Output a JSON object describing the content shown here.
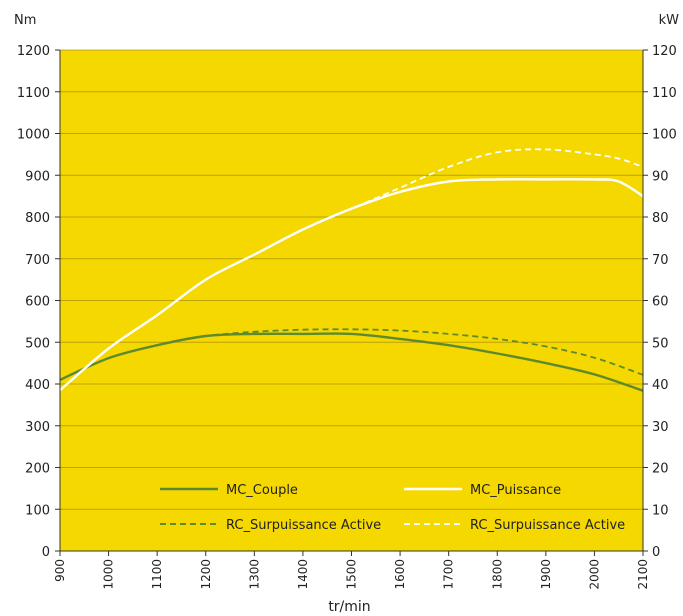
{
  "chart_data": {
    "type": "line",
    "title": "",
    "xlabel": "tr/min",
    "ylabel_left": "Nm",
    "ylabel_right": "kW",
    "x_ticks": [
      900,
      1000,
      1100,
      1200,
      1300,
      1400,
      1500,
      1600,
      1700,
      1800,
      1900,
      2000,
      2100
    ],
    "y_left_ticks": [
      0,
      100,
      200,
      300,
      400,
      500,
      600,
      700,
      800,
      900,
      1000,
      1100,
      1200
    ],
    "y_right_ticks": [
      0,
      10,
      20,
      30,
      40,
      50,
      60,
      70,
      80,
      90,
      100,
      110,
      120
    ],
    "xlim": [
      900,
      2100
    ],
    "ylim_left": [
      0,
      1200
    ],
    "ylim_right": [
      0,
      120
    ],
    "grid": "horizontal",
    "background_color": "#F5D800",
    "legend_position": "bottom-inside",
    "series": [
      {
        "name": "MC_Couple",
        "axis": "left",
        "style": "solid",
        "color": "#5E8A2E",
        "x": [
          900,
          1000,
          1100,
          1200,
          1300,
          1400,
          1500,
          1600,
          1700,
          1800,
          1900,
          2000,
          2100
        ],
        "y": [
          410,
          462,
          493,
          515,
          520,
          520,
          520,
          508,
          493,
          473,
          450,
          423,
          384
        ]
      },
      {
        "name": "MC_Puissance",
        "axis": "right",
        "style": "solid",
        "color": "#FFFFFF",
        "x": [
          900,
          1000,
          1100,
          1200,
          1300,
          1400,
          1500,
          1600,
          1700,
          1800,
          1900,
          2000,
          2050,
          2100
        ],
        "y": [
          38.5,
          48.5,
          56.5,
          65,
          71,
          77,
          82,
          86,
          88.5,
          89,
          89,
          89,
          88.5,
          85
        ]
      },
      {
        "name": "RC_Surpuissance Active",
        "axis": "left",
        "style": "dashed",
        "color": "#5E8A2E",
        "x": [
          900,
          1000,
          1100,
          1200,
          1300,
          1400,
          1500,
          1600,
          1700,
          1800,
          1900,
          2000,
          2100
        ],
        "y": [
          410,
          462,
          493,
          515,
          525,
          530,
          531,
          528,
          520,
          508,
          490,
          463,
          422
        ]
      },
      {
        "name": "RC_Surpuissance Active",
        "axis": "right",
        "style": "dashed",
        "color": "#FFFFFF",
        "x": [
          900,
          1000,
          1100,
          1200,
          1300,
          1400,
          1500,
          1600,
          1700,
          1800,
          1900,
          2000,
          2050,
          2100
        ],
        "y": [
          38.5,
          48.5,
          56.5,
          65,
          71,
          77,
          82,
          87,
          92,
          95.5,
          96.2,
          95,
          94,
          92
        ]
      }
    ]
  }
}
